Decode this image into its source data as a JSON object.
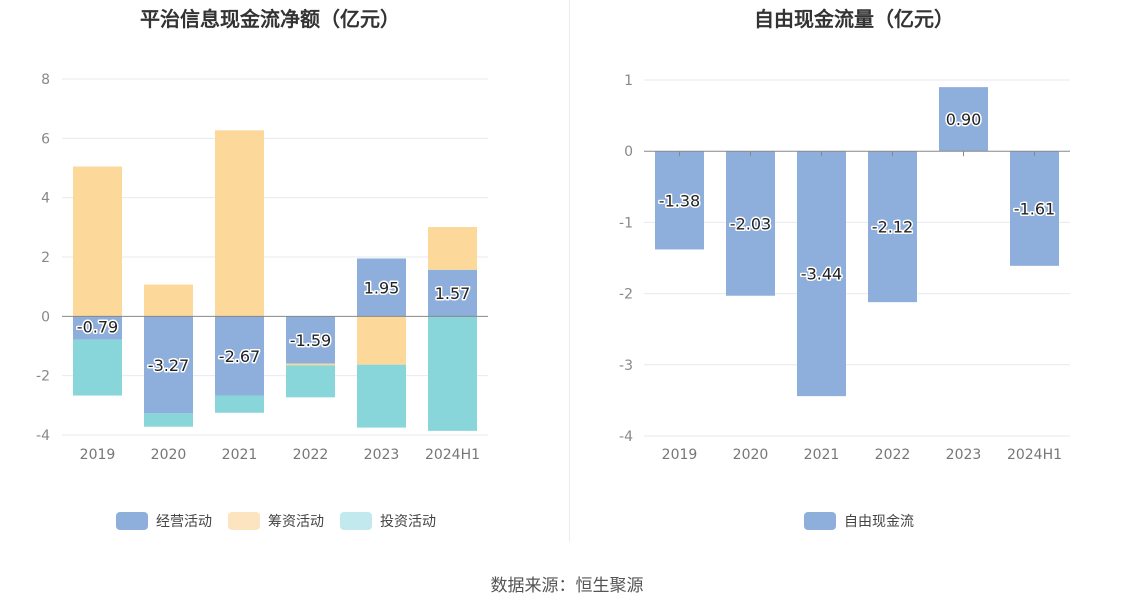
{
  "source_label": "数据来源：恒生聚源",
  "chart_data": [
    {
      "type": "bar",
      "stacked": true,
      "title": "平治信息现金流净额（亿元）",
      "categories": [
        "2019",
        "2020",
        "2021",
        "2022",
        "2023",
        "2024H1"
      ],
      "ylim": [
        -4,
        8
      ],
      "yticks": [
        8,
        6,
        4,
        2,
        0,
        -2,
        -4
      ],
      "grid": true,
      "legend_position": "bottom",
      "series": [
        {
          "name": "经营活动",
          "color": "#8eaedc",
          "legend_color": "#8eaedc",
          "values": [
            -0.79,
            -3.27,
            -2.67,
            -1.59,
            1.95,
            1.57
          ],
          "labels": [
            "-0.79",
            "-3.27",
            "-2.67",
            "-1.59",
            "1.95",
            "1.57"
          ]
        },
        {
          "name": "筹资活动",
          "color": "#fdd89b",
          "legend_color": "#fde4c0",
          "values": [
            5.05,
            1.07,
            6.27,
            -0.06,
            -1.63,
            1.44
          ]
        },
        {
          "name": "投资活动",
          "color": "#88d5da",
          "legend_color": "#c2e9ee",
          "values": [
            -1.88,
            -0.45,
            -0.58,
            -1.08,
            -2.12,
            -3.86
          ]
        }
      ]
    },
    {
      "type": "bar",
      "title": "自由现金流量（亿元）",
      "categories": [
        "2019",
        "2020",
        "2021",
        "2022",
        "2023",
        "2024H1"
      ],
      "ylim": [
        -4,
        1
      ],
      "yticks": [
        1,
        0,
        -1,
        -2,
        -3,
        -4
      ],
      "grid": true,
      "legend_position": "bottom",
      "series": [
        {
          "name": "自由现金流",
          "color": "#8eaedc",
          "legend_color": "#8eaedc",
          "values": [
            -1.38,
            -2.03,
            -3.44,
            -2.12,
            0.9,
            -1.61
          ],
          "labels": [
            "-1.38",
            "-2.03",
            "-3.44",
            "-2.12",
            "0.90",
            "-1.61"
          ]
        }
      ]
    }
  ]
}
